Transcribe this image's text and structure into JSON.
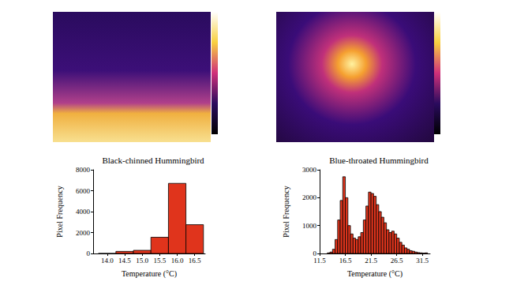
{
  "chart_data": [
    {
      "type": "histogram",
      "title": "Black-chinned Hummingbird",
      "xlabel": "Temperature (°C)",
      "ylabel": "Pixel Frequency",
      "bins": [
        13.75,
        14.25,
        14.75,
        15.25,
        15.75,
        16.25,
        16.75
      ],
      "counts": [
        0,
        200,
        300,
        1550,
        6700,
        2750
      ],
      "color": "#e0341c",
      "xlim": [
        13.6,
        16.8
      ],
      "xticks": [
        {
          "value": 14,
          "label": "14.0"
        },
        14.5,
        {
          "value": 15,
          "label": "15.0"
        },
        15.5,
        {
          "value": 16,
          "label": "16.0"
        },
        16.5
      ],
      "ylim": [
        0,
        8000
      ],
      "yticks": [
        0,
        2000,
        4000,
        6000,
        8000
      ]
    },
    {
      "type": "histogram",
      "title": "Blue-throated Hummingbird",
      "xlabel": "Temperature (°C)",
      "ylabel": "Pixel Frequency",
      "bins": [
        13.0,
        13.5,
        14.0,
        14.5,
        15.0,
        15.5,
        16.0,
        16.5,
        17.0,
        17.5,
        18.0,
        18.5,
        19.0,
        19.5,
        20.0,
        20.5,
        21.0,
        21.5,
        22.0,
        22.5,
        23.0,
        23.5,
        24.0,
        24.5,
        25.0,
        25.5,
        26.0,
        26.5,
        27.0,
        27.5,
        28.0,
        28.5,
        29.0,
        29.5,
        30.0,
        30.5,
        31.0,
        31.5,
        32.0,
        32.5
      ],
      "counts": [
        20,
        50,
        150,
        500,
        1200,
        1900,
        2750,
        2000,
        1000,
        700,
        550,
        500,
        600,
        750,
        1200,
        1700,
        2200,
        2150,
        2050,
        1750,
        1500,
        1300,
        1100,
        850,
        750,
        800,
        700,
        550,
        400,
        300,
        200,
        150,
        100,
        80,
        50,
        30,
        20,
        10,
        20
      ],
      "color": "#e0341c",
      "xlim": [
        11.5,
        33
      ],
      "xticks": [
        11.5,
        16.5,
        21.5,
        26.5,
        31.5
      ],
      "ylim": [
        0,
        3000
      ],
      "yticks": [
        0,
        1000,
        2000,
        3000
      ]
    }
  ]
}
